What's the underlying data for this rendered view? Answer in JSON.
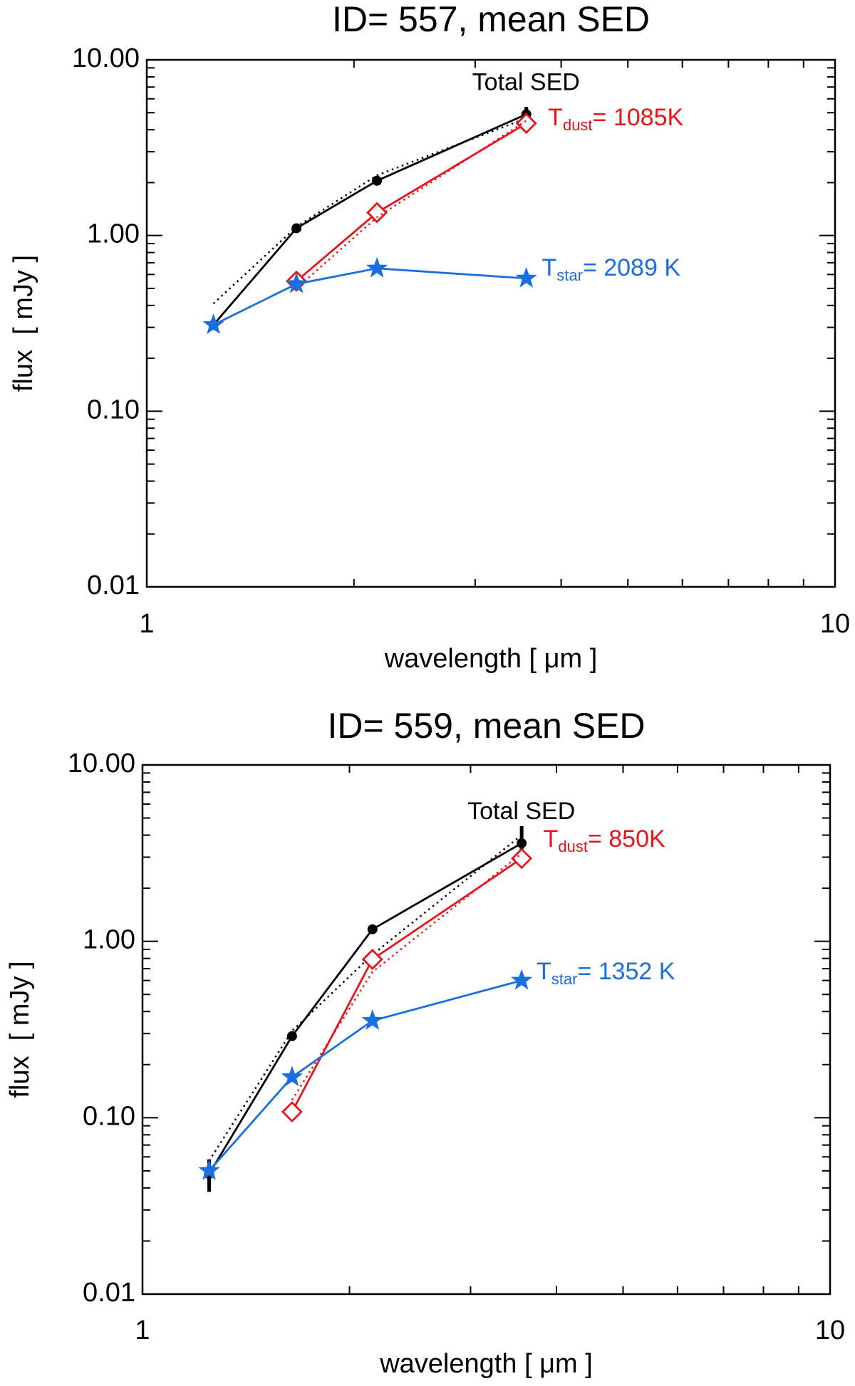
{
  "chart_data": [
    {
      "type": "line",
      "title": "ID= 557, mean SED",
      "xlabel": "wavelength [ μm ]",
      "ylabel": "flux  [ mJy ]",
      "log_x": true,
      "log_y": true,
      "x": [
        1.25,
        1.65,
        2.16,
        3.56
      ],
      "xlim": [
        1,
        10
      ],
      "ylim": [
        0.01,
        10
      ],
      "xticks": [
        1,
        10
      ],
      "yticks": [
        {
          "value": 0.01,
          "label": "0.01"
        },
        {
          "value": 0.1,
          "label": "0.10"
        },
        {
          "value": 1,
          "label": "1.00"
        },
        {
          "value": 10,
          "label": "10.00"
        }
      ],
      "series": [
        {
          "color": "#000000",
          "style": "solid",
          "marker": "circle",
          "values": [
            0.31,
            1.1,
            2.05,
            4.9
          ],
          "errors": [
            null,
            null,
            null,
            0.5
          ]
        },
        {
          "color": "#000000",
          "style": "dotted",
          "values": [
            0.41,
            1.12,
            2.2,
            4.65
          ]
        },
        {
          "color": "#e8141b",
          "style": "solid",
          "marker": "diamond",
          "values": [
            null,
            0.55,
            1.35,
            4.35
          ]
        },
        {
          "color": "#e8141b",
          "style": "dotted",
          "values": [
            null,
            0.5,
            1.27,
            4.5
          ]
        },
        {
          "color": "#1a6fe0",
          "style": "solid",
          "marker": "star",
          "values": [
            0.31,
            0.53,
            0.65,
            0.57
          ]
        }
      ],
      "annotations": [
        {
          "text": "Total SED",
          "color": "#000000"
        },
        {
          "text": "T",
          "sub": "dust",
          "after": "= 1085K",
          "color": "#e8141b"
        },
        {
          "text": "T",
          "sub": "star",
          "after": "= 2089 K",
          "color": "#1a6fe0"
        }
      ]
    },
    {
      "type": "line",
      "title": "ID= 559, mean SED",
      "xlabel": "wavelength [ μm ]",
      "ylabel": "flux  [ mJy ]",
      "log_x": true,
      "log_y": true,
      "x": [
        1.25,
        1.65,
        2.16,
        3.56
      ],
      "xlim": [
        1,
        10
      ],
      "ylim": [
        0.01,
        10
      ],
      "xticks": [
        1,
        10
      ],
      "yticks": [
        {
          "value": 0.01,
          "label": "0.01"
        },
        {
          "value": 0.1,
          "label": "0.10"
        },
        {
          "value": 1,
          "label": "1.00"
        },
        {
          "value": 10,
          "label": "10.00"
        }
      ],
      "series": [
        {
          "color": "#000000",
          "style": "solid",
          "marker": "circle",
          "values": [
            0.048,
            0.29,
            1.17,
            3.6
          ],
          "errors": [
            0.01,
            null,
            null,
            0.9
          ]
        },
        {
          "color": "#000000",
          "style": "dotted",
          "values": [
            0.057,
            0.31,
            0.84,
            4.0
          ]
        },
        {
          "color": "#e8141b",
          "style": "solid",
          "marker": "diamond",
          "values": [
            null,
            0.108,
            0.79,
            2.95
          ]
        },
        {
          "color": "#e8141b",
          "style": "dotted",
          "values": [
            null,
            0.126,
            0.67,
            3.15
          ]
        },
        {
          "color": "#1a6fe0",
          "style": "solid",
          "marker": "star",
          "values": [
            0.05,
            0.17,
            0.355,
            0.6
          ]
        }
      ],
      "annotations": [
        {
          "text": "Total SED",
          "color": "#000000"
        },
        {
          "text": "T",
          "sub": "dust",
          "after": "= 850K",
          "color": "#e8141b"
        },
        {
          "text": "T",
          "sub": "star",
          "after": "= 1352 K",
          "color": "#1a6fe0"
        }
      ]
    }
  ]
}
